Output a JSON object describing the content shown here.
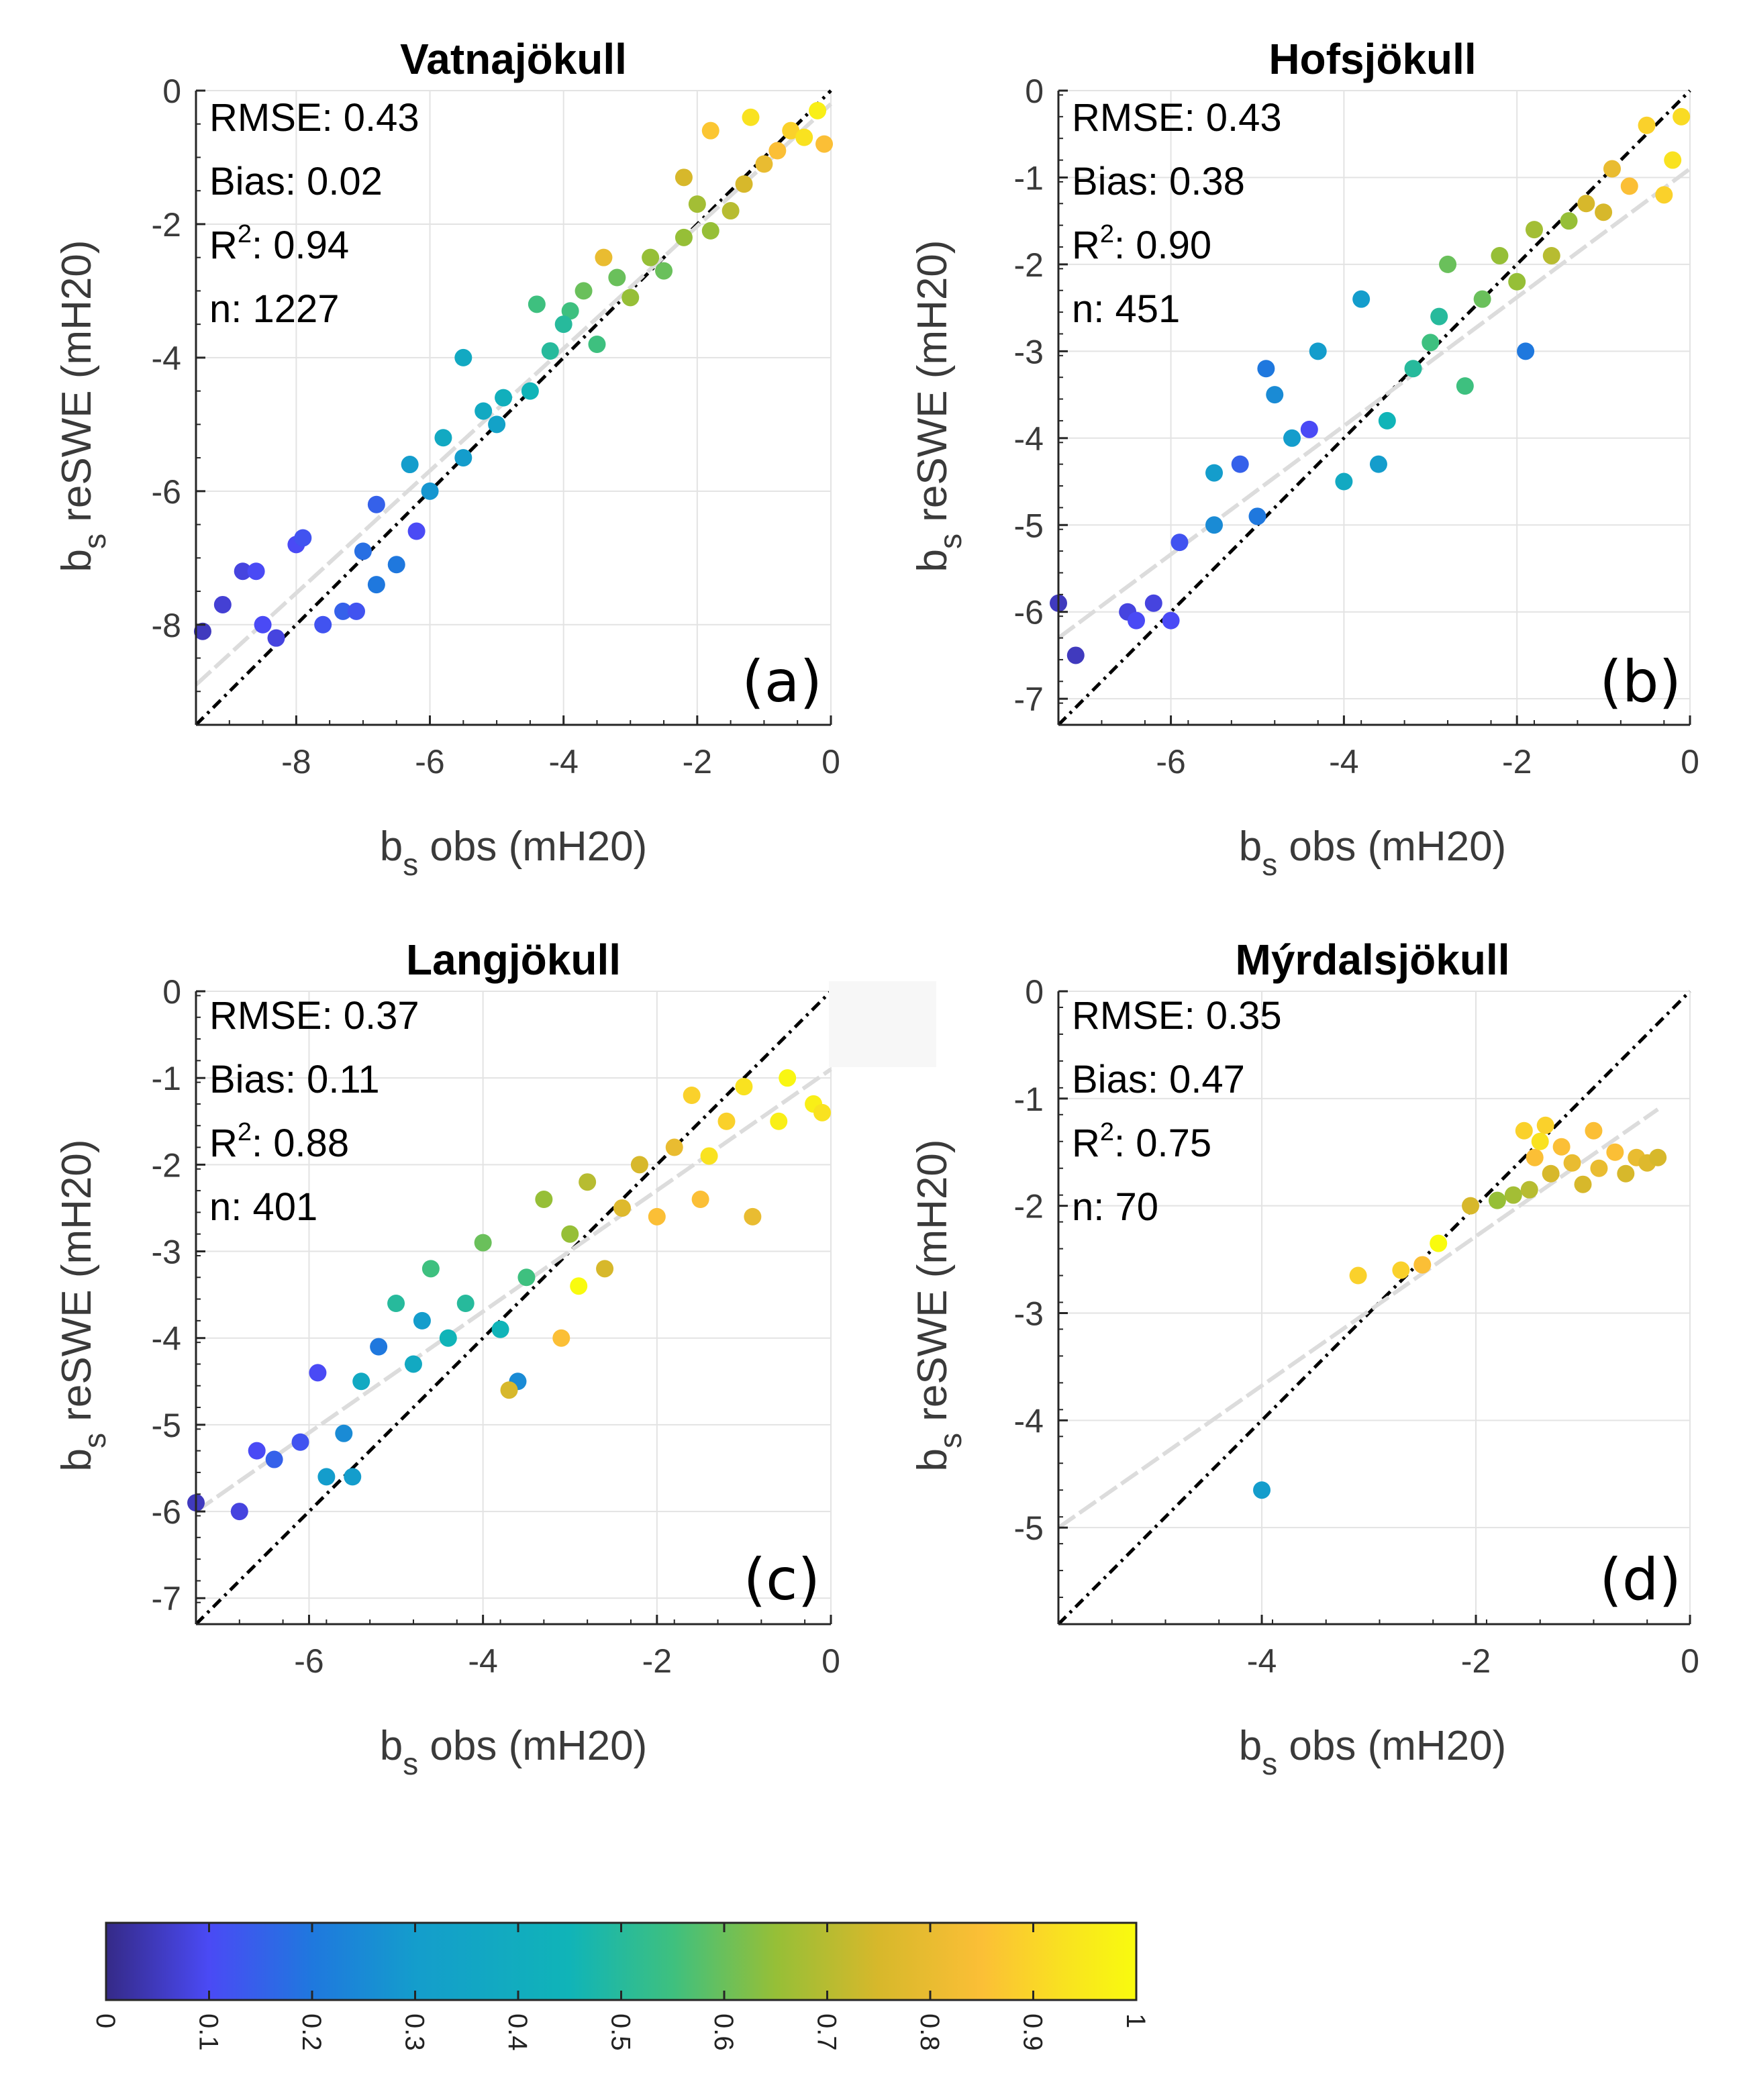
{
  "chart_data": [
    {
      "type": "scatter",
      "panel": "(a)",
      "title": "Vatnajökull",
      "xlabel": "b_s obs (mH20)",
      "ylabel": "b_s reSWE (mH20)",
      "xlim": [
        -9.5,
        0
      ],
      "ylim": [
        -9.5,
        0
      ],
      "xticks": [
        -8,
        -6,
        -4,
        -2,
        0
      ],
      "yticks": [
        -8,
        -6,
        -4,
        -2,
        0
      ],
      "xtick_labels": [
        "-8",
        "-6",
        "-4",
        "-2",
        "0"
      ],
      "ytick_labels": [
        "-8",
        "-6",
        "-4",
        "-2",
        "0"
      ],
      "stats": {
        "rmse": "RMSE: 0.43",
        "bias": "Bias: 0.02",
        "r2_prefix": "R",
        "r2_sup": "2",
        "r2_value": ": 0.94",
        "n": "n: 1227"
      },
      "fit_line": {
        "x": [
          -9.5,
          0
        ],
        "y": [
          -8.9,
          -0.2
        ]
      },
      "one_to_one": true,
      "points": [
        [
          -9.4,
          -8.1,
          0.05
        ],
        [
          -9.1,
          -7.7,
          0.07
        ],
        [
          -8.8,
          -7.2,
          0.08
        ],
        [
          -8.6,
          -7.2,
          0.1
        ],
        [
          -8.5,
          -8.0,
          0.1
        ],
        [
          -8.3,
          -8.2,
          0.08
        ],
        [
          -8.0,
          -6.8,
          0.1
        ],
        [
          -7.9,
          -6.7,
          0.12
        ],
        [
          -7.6,
          -8.0,
          0.12
        ],
        [
          -7.3,
          -7.8,
          0.15
        ],
        [
          -7.1,
          -7.8,
          0.12
        ],
        [
          -7.0,
          -6.9,
          0.18
        ],
        [
          -6.8,
          -7.4,
          0.2
        ],
        [
          -6.5,
          -7.1,
          0.2
        ],
        [
          -6.8,
          -6.2,
          0.15
        ],
        [
          -6.3,
          -5.6,
          0.3
        ],
        [
          -6.0,
          -6.0,
          0.28
        ],
        [
          -5.8,
          -5.2,
          0.35
        ],
        [
          -5.5,
          -5.5,
          0.3
        ],
        [
          -5.2,
          -4.8,
          0.35
        ],
        [
          -5.0,
          -5.0,
          0.32
        ],
        [
          -4.9,
          -4.6,
          0.38
        ],
        [
          -4.5,
          -4.5,
          0.4
        ],
        [
          -4.2,
          -3.9,
          0.45
        ],
        [
          -4.4,
          -3.2,
          0.5
        ],
        [
          -3.9,
          -3.3,
          0.5
        ],
        [
          -3.5,
          -3.8,
          0.5
        ],
        [
          -3.7,
          -3.0,
          0.55
        ],
        [
          -3.2,
          -2.8,
          0.55
        ],
        [
          -3.0,
          -3.1,
          0.6
        ],
        [
          -2.7,
          -2.5,
          0.6
        ],
        [
          -2.5,
          -2.7,
          0.55
        ],
        [
          -2.2,
          -2.2,
          0.6
        ],
        [
          -2.0,
          -1.7,
          0.62
        ],
        [
          -1.8,
          -2.1,
          0.6
        ],
        [
          -1.5,
          -1.8,
          0.65
        ],
        [
          -1.3,
          -1.4,
          0.7
        ],
        [
          -1.0,
          -1.1,
          0.75
        ],
        [
          -0.8,
          -0.9,
          0.8
        ],
        [
          -0.6,
          -0.6,
          0.85
        ],
        [
          -0.4,
          -0.7,
          0.9
        ],
        [
          -0.2,
          -0.3,
          0.95
        ],
        [
          -0.1,
          -0.8,
          0.8
        ],
        [
          -1.8,
          -0.6,
          0.82
        ],
        [
          -1.2,
          -0.4,
          0.9
        ],
        [
          -2.2,
          -1.3,
          0.7
        ],
        [
          -3.4,
          -2.5,
          0.75
        ],
        [
          -4.0,
          -3.5,
          0.45
        ],
        [
          -5.5,
          -4.0,
          0.35
        ],
        [
          -6.2,
          -6.6,
          0.1
        ]
      ]
    },
    {
      "type": "scatter",
      "panel": "(b)",
      "title": "Hofsjökull",
      "xlabel": "b_s obs (mH20)",
      "ylabel": "b_s reSWE (mH20)",
      "xlim": [
        -7.3,
        0
      ],
      "ylim": [
        -7.3,
        0
      ],
      "xticks": [
        -6,
        -4,
        -2,
        0
      ],
      "yticks": [
        -7,
        -6,
        -5,
        -4,
        -3,
        -2,
        -1,
        0
      ],
      "xtick_labels": [
        "-6",
        "-4",
        "-2",
        "0"
      ],
      "ytick_labels": [
        "-7",
        "-6",
        "-5",
        "-4",
        "-3",
        "-2",
        "-1",
        "0"
      ],
      "stats": {
        "rmse": "RMSE: 0.43",
        "bias": "Bias: 0.38",
        "r2_prefix": "R",
        "r2_sup": "2",
        "r2_value": ": 0.90",
        "n": "n: 451"
      },
      "fit_line": {
        "x": [
          -7.3,
          0
        ],
        "y": [
          -6.3,
          -0.9
        ]
      },
      "one_to_one": true,
      "points": [
        [
          -7.3,
          -5.9,
          0.05
        ],
        [
          -7.1,
          -6.5,
          0.05
        ],
        [
          -6.5,
          -6.0,
          0.08
        ],
        [
          -6.4,
          -6.1,
          0.1
        ],
        [
          -6.2,
          -5.9,
          0.08
        ],
        [
          -6.0,
          -6.1,
          0.1
        ],
        [
          -5.9,
          -5.2,
          0.12
        ],
        [
          -5.5,
          -5.0,
          0.25
        ],
        [
          -5.5,
          -4.4,
          0.3
        ],
        [
          -5.2,
          -4.3,
          0.15
        ],
        [
          -5.0,
          -4.9,
          0.2
        ],
        [
          -4.8,
          -3.5,
          0.25
        ],
        [
          -4.6,
          -4.0,
          0.3
        ],
        [
          -4.3,
          -3.0,
          0.3
        ],
        [
          -4.0,
          -4.5,
          0.35
        ],
        [
          -3.8,
          -2.4,
          0.3
        ],
        [
          -3.5,
          -3.8,
          0.4
        ],
        [
          -3.2,
          -3.2,
          0.45
        ],
        [
          -3.0,
          -2.9,
          0.5
        ],
        [
          -2.8,
          -2.0,
          0.55
        ],
        [
          -2.6,
          -3.4,
          0.5
        ],
        [
          -2.4,
          -2.4,
          0.55
        ],
        [
          -2.2,
          -1.9,
          0.6
        ],
        [
          -2.0,
          -2.2,
          0.6
        ],
        [
          -1.8,
          -1.6,
          0.62
        ],
        [
          -1.6,
          -1.9,
          0.65
        ],
        [
          -1.4,
          -1.5,
          0.6
        ],
        [
          -1.2,
          -1.3,
          0.7
        ],
        [
          -1.0,
          -1.4,
          0.7
        ],
        [
          -0.9,
          -0.9,
          0.75
        ],
        [
          -0.7,
          -1.1,
          0.8
        ],
        [
          -0.5,
          -0.4,
          0.85
        ],
        [
          -0.3,
          -1.2,
          0.85
        ],
        [
          -0.2,
          -0.8,
          0.9
        ],
        [
          -0.1,
          -0.3,
          0.88
        ],
        [
          -1.9,
          -3.0,
          0.2
        ],
        [
          -4.4,
          -3.9,
          0.1
        ],
        [
          -3.6,
          -4.3,
          0.3
        ],
        [
          -2.9,
          -2.6,
          0.45
        ],
        [
          -4.9,
          -3.2,
          0.2
        ]
      ]
    },
    {
      "type": "scatter",
      "panel": "(c)",
      "title": "Langjökull",
      "xlabel": "b_s obs (mH20)",
      "ylabel": "b_s reSWE (mH20)",
      "xlim": [
        -7.3,
        0
      ],
      "ylim": [
        -7.3,
        0
      ],
      "xticks": [
        -6,
        -4,
        -2,
        0
      ],
      "yticks": [
        -7,
        -6,
        -5,
        -4,
        -3,
        -2,
        -1,
        0
      ],
      "xtick_labels": [
        "-6",
        "-4",
        "-2",
        "0"
      ],
      "ytick_labels": [
        "-7",
        "-6",
        "-5",
        "-4",
        "-3",
        "-2",
        "-1",
        "0"
      ],
      "stats": {
        "rmse": "RMSE: 0.37",
        "bias": "Bias: 0.11",
        "r2_prefix": "R",
        "r2_sup": "2",
        "r2_value": ": 0.88",
        "n": "n: 401"
      },
      "fit_line": {
        "x": [
          -7.3,
          0
        ],
        "y": [
          -6.0,
          -0.9
        ]
      },
      "one_to_one": true,
      "points": [
        [
          -7.3,
          -5.9,
          0.05
        ],
        [
          -6.8,
          -6.0,
          0.08
        ],
        [
          -6.6,
          -5.3,
          0.1
        ],
        [
          -6.4,
          -5.4,
          0.15
        ],
        [
          -6.1,
          -5.2,
          0.12
        ],
        [
          -5.9,
          -4.4,
          0.1
        ],
        [
          -5.8,
          -5.6,
          0.3
        ],
        [
          -5.6,
          -5.1,
          0.25
        ],
        [
          -5.5,
          -5.6,
          0.3
        ],
        [
          -5.4,
          -4.5,
          0.35
        ],
        [
          -5.2,
          -4.1,
          0.2
        ],
        [
          -5.0,
          -3.6,
          0.45
        ],
        [
          -4.8,
          -4.3,
          0.35
        ],
        [
          -4.6,
          -3.2,
          0.5
        ],
        [
          -4.4,
          -4.0,
          0.4
        ],
        [
          -4.2,
          -3.6,
          0.45
        ],
        [
          -4.0,
          -2.9,
          0.55
        ],
        [
          -3.8,
          -3.9,
          0.4
        ],
        [
          -3.6,
          -4.5,
          0.25
        ],
        [
          -3.5,
          -3.3,
          0.5
        ],
        [
          -3.3,
          -2.4,
          0.6
        ],
        [
          -3.1,
          -4.0,
          0.8
        ],
        [
          -3.0,
          -2.8,
          0.6
        ],
        [
          -2.8,
          -2.2,
          0.65
        ],
        [
          -2.6,
          -3.2,
          0.7
        ],
        [
          -2.4,
          -2.5,
          0.72
        ],
        [
          -2.2,
          -2.0,
          0.7
        ],
        [
          -2.0,
          -2.6,
          0.8
        ],
        [
          -1.8,
          -1.8,
          0.75
        ],
        [
          -1.6,
          -1.2,
          0.85
        ],
        [
          -1.4,
          -1.9,
          0.9
        ],
        [
          -1.2,
          -1.5,
          0.85
        ],
        [
          -1.0,
          -1.1,
          0.9
        ],
        [
          -0.9,
          -2.6,
          0.75
        ],
        [
          -0.6,
          -1.5,
          0.95
        ],
        [
          -0.5,
          -1.0,
          0.98
        ],
        [
          -0.2,
          -1.3,
          0.95
        ],
        [
          -0.1,
          -1.4,
          0.9
        ],
        [
          -2.9,
          -3.4,
          1.0
        ],
        [
          -3.7,
          -4.6,
          0.7
        ],
        [
          -1.5,
          -2.4,
          0.8
        ],
        [
          -4.7,
          -3.8,
          0.3
        ]
      ]
    },
    {
      "type": "scatter",
      "panel": "(d)",
      "title": "Mýrdalsjökull",
      "xlabel": "b_s obs (mH20)",
      "ylabel": "b_s reSWE (mH20)",
      "xlim": [
        -5.9,
        0
      ],
      "ylim": [
        -5.9,
        0
      ],
      "xticks": [
        -4,
        -2,
        0
      ],
      "yticks": [
        -5,
        -4,
        -3,
        -2,
        -1,
        0
      ],
      "xtick_labels": [
        "-4",
        "-2",
        "0"
      ],
      "ytick_labels": [
        "-5",
        "-4",
        "-3",
        "-2",
        "-1",
        "0"
      ],
      "stats": {
        "rmse": "RMSE: 0.35",
        "bias": "Bias: 0.47",
        "r2_prefix": "R",
        "r2_sup": "2",
        "r2_value": ": 0.75",
        "n": "n: 70"
      },
      "fit_line": {
        "x": [
          -5.9,
          -0.3
        ],
        "y": [
          -5.0,
          -1.1
        ]
      },
      "one_to_one": true,
      "points": [
        [
          -4.0,
          -4.65,
          0.3
        ],
        [
          -3.1,
          -2.65,
          0.85
        ],
        [
          -2.7,
          -2.6,
          0.85
        ],
        [
          -2.5,
          -2.55,
          0.8
        ],
        [
          -2.35,
          -2.35,
          1.0
        ],
        [
          -2.05,
          -2.0,
          0.7
        ],
        [
          -1.8,
          -1.95,
          0.6
        ],
        [
          -1.65,
          -1.9,
          0.62
        ],
        [
          -1.5,
          -1.85,
          0.65
        ],
        [
          -1.55,
          -1.3,
          0.85
        ],
        [
          -1.45,
          -1.55,
          0.8
        ],
        [
          -1.35,
          -1.25,
          0.85
        ],
        [
          -1.3,
          -1.7,
          0.7
        ],
        [
          -1.2,
          -1.45,
          0.8
        ],
        [
          -1.1,
          -1.6,
          0.75
        ],
        [
          -1.0,
          -1.8,
          0.7
        ],
        [
          -0.9,
          -1.3,
          0.8
        ],
        [
          -0.85,
          -1.65,
          0.75
        ],
        [
          -0.7,
          -1.5,
          0.8
        ],
        [
          -0.6,
          -1.7,
          0.7
        ],
        [
          -0.5,
          -1.55,
          0.75
        ],
        [
          -0.4,
          -1.6,
          0.72
        ],
        [
          -0.3,
          -1.55,
          0.7
        ],
        [
          -1.4,
          -1.4,
          0.9
        ]
      ]
    }
  ],
  "colorbar": {
    "range": [
      0,
      1
    ],
    "tick_labels": [
      "0",
      "0.1",
      "0.2",
      "0.3",
      "0.4",
      "0.5",
      "0.6",
      "0.7",
      "0.8",
      "0.9",
      "1"
    ],
    "colormap": "parula",
    "stops": [
      "#352a87",
      "#4a4af5",
      "#1f78de",
      "#149dcc",
      "#10b4b8",
      "#3ec07f",
      "#96bf37",
      "#d7b82b",
      "#fbbf36",
      "#f9e220",
      "#f9fb0e"
    ]
  }
}
